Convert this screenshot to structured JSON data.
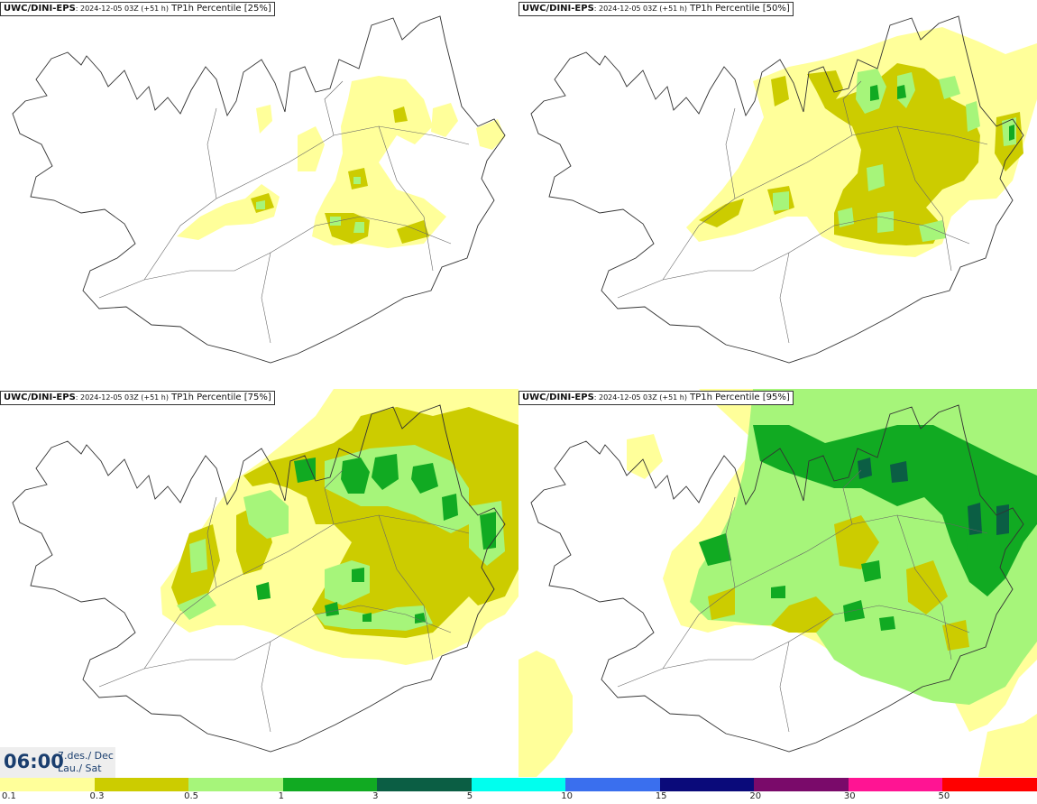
{
  "panels": [
    {
      "source": "UWC/DINI-EPS",
      "run": ": 2024-12-05 03Z (+51 h)",
      "label": " TP1h Percentile [25%]"
    },
    {
      "source": "UWC/DINI-EPS",
      "run": ": 2024-12-05 03Z (+51 h)",
      "label": " TP1h Percentile [50%]"
    },
    {
      "source": "UWC/DINI-EPS",
      "run": ": 2024-12-05 03Z (+51 h)",
      "label": " TP1h Percentile [75%]"
    },
    {
      "source": "UWC/DINI-EPS",
      "run": ": 2024-12-05 03Z (+51 h)",
      "label": " TP1h Percentile [95%]"
    }
  ],
  "valid_time": {
    "time": "06:00",
    "date_line": "7.des./ Dec",
    "day_line": "Lau./ Sat"
  },
  "legend": {
    "ticks": [
      "0.1",
      "0.3",
      "0.5",
      "1",
      "3",
      "5",
      "10",
      "15",
      "20",
      "30",
      "50"
    ],
    "colors": [
      "#ffff9a",
      "#cccc00",
      "#a6f57a",
      "#11aa22",
      "#0b5e44",
      "#00ffee",
      "#3a6fee",
      "#0a0a7a",
      "#7a0a6a",
      "#ff1493",
      "#ff0000"
    ]
  },
  "colors": {
    "precip_01": "#ffff9a",
    "precip_03": "#cccc00",
    "precip_05": "#a6f57a",
    "precip_1": "#11aa22",
    "precip_3": "#0b5e44",
    "coastline": "#333333",
    "time_text": "#1a3e6e"
  }
}
